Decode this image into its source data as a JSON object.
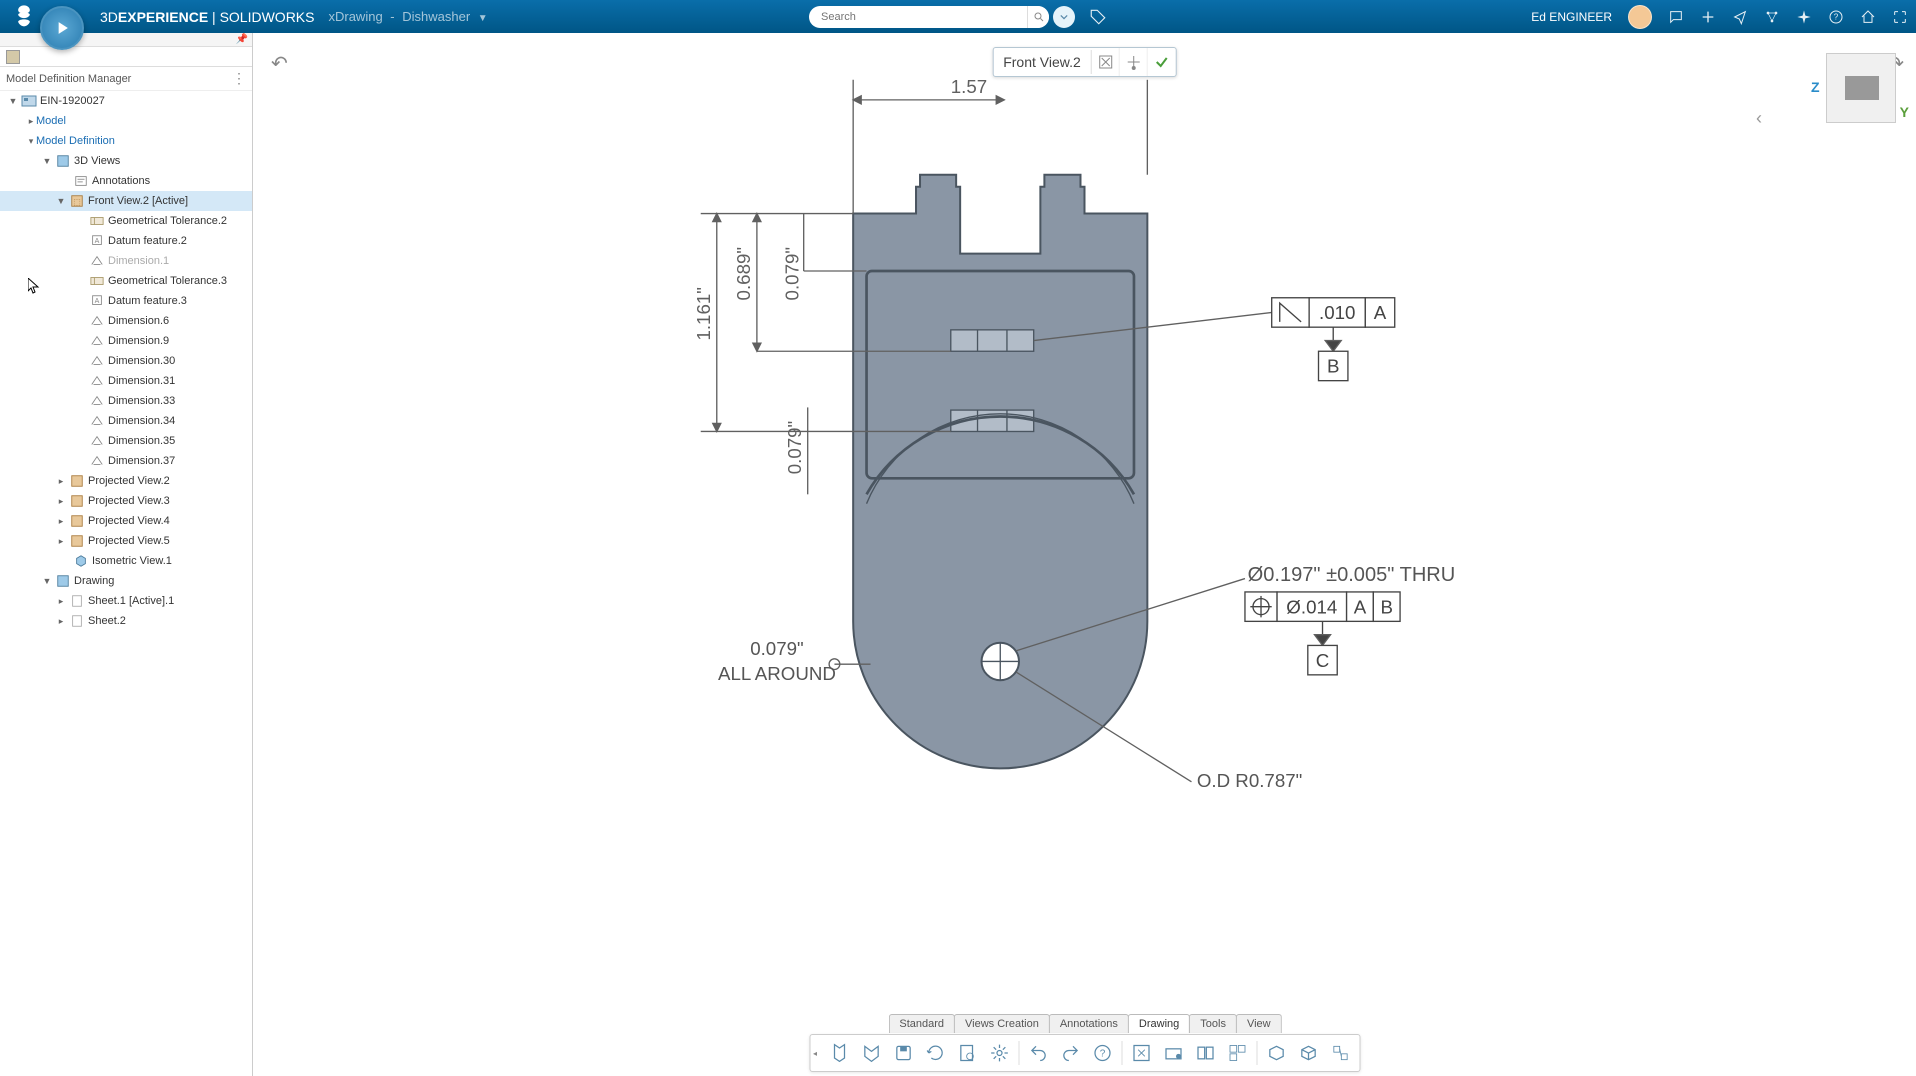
{
  "header": {
    "brand_pre": "3D",
    "brand_bold": "EXPERIENCE",
    "brand_post": " | SOLIDWORKS",
    "app": "xDrawing",
    "doc": "Dishwasher",
    "search_placeholder": "Search",
    "user": "Ed ENGINEER"
  },
  "panel": {
    "title": "Model Definition Manager"
  },
  "tree": {
    "root": "EIN-1920027",
    "model": "Model",
    "model_def": "Model Definition",
    "views3d": "3D Views",
    "annot": "Annotations",
    "front": "Front View.2 [Active]",
    "items": [
      "Geometrical Tolerance.2",
      "Datum feature.2",
      "Dimension.1",
      "Geometrical Tolerance.3",
      "Datum feature.3",
      "Dimension.6",
      "Dimension.9",
      "Dimension.30",
      "Dimension.31",
      "Dimension.33",
      "Dimension.34",
      "Dimension.35",
      "Dimension.37"
    ],
    "proj": [
      "Projected View.2",
      "Projected View.3",
      "Projected View.4",
      "Projected View.5"
    ],
    "iso": "Isometric View.1",
    "drawing": "Drawing",
    "sheets": [
      "Sheet.1 [Active].1",
      "Sheet.2"
    ]
  },
  "view_ctrl": {
    "name": "Front View.2"
  },
  "tabs": [
    "Standard",
    "Views Creation",
    "Annotations",
    "Drawing",
    "Tools",
    "View"
  ],
  "tabs_active": 3,
  "triad": {
    "z": "Z",
    "y": "Y"
  },
  "drawing": {
    "dim_top": "1.57",
    "dim_1161": "1.161\"",
    "dim_0689": "0.689\"",
    "dim_0079a": "0.079\"",
    "dim_0079b": "0.079\"",
    "gtol1_val": ".010",
    "gtol1_ref": "A",
    "gtol1_datum": "B",
    "hole": "Ø0.197\" ±0.005\" THRU",
    "gtol2_val": "Ø.014",
    "gtol2_refA": "A",
    "gtol2_refB": "B",
    "gtol2_datum": "C",
    "allaround_val": "0.079\"",
    "allaround_lbl": "ALL AROUND",
    "radius": "O.D R0.787\"",
    "colors": {
      "part": "#8a96a5",
      "part_edge": "#4a5560",
      "dim": "#606060",
      "datum": "#444"
    }
  },
  "icons": {
    "search": "search-icon",
    "tag": "tag-icon",
    "bell": "bell-icon",
    "plus": "plus-icon",
    "share": "share-icon",
    "net": "network-icon",
    "spark": "spark-icon",
    "help": "help-icon",
    "home": "home-icon",
    "full": "fullscreen-icon"
  }
}
